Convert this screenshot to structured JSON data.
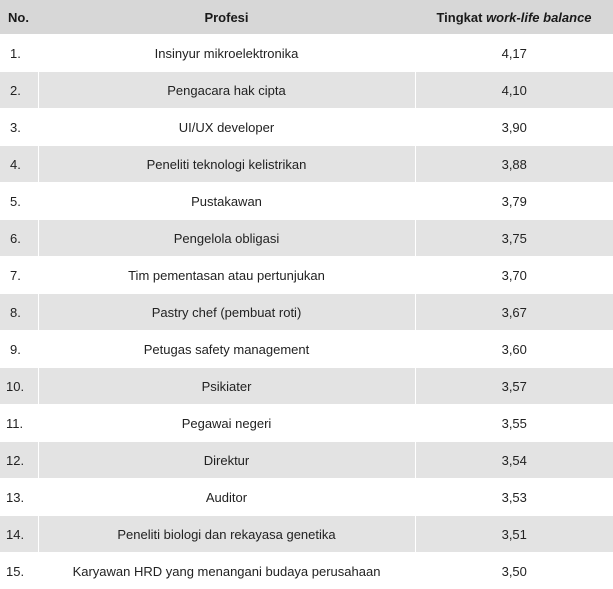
{
  "table": {
    "headers": {
      "no": "No.",
      "profesi": "Profesi",
      "rate_prefix": "Tingkat ",
      "rate_emphasis": "work-life balance"
    },
    "rows": [
      {
        "no": "1.",
        "profesi": "Insinyur mikroelektronika",
        "rate": "4,17"
      },
      {
        "no": "2.",
        "profesi": "Pengacara hak cipta",
        "rate": "4,10"
      },
      {
        "no": "3.",
        "profesi": "UI/UX developer",
        "rate": "3,90"
      },
      {
        "no": "4.",
        "profesi": "Peneliti teknologi kelistrikan",
        "rate": "3,88"
      },
      {
        "no": "5.",
        "profesi": "Pustakawan",
        "rate": "3,79"
      },
      {
        "no": "6.",
        "profesi": "Pengelola obligasi",
        "rate": "3,75"
      },
      {
        "no": "7.",
        "profesi": "Tim pementasan atau pertunjukan",
        "rate": "3,70"
      },
      {
        "no": "8.",
        "profesi": "Pastry chef (pembuat roti)",
        "rate": "3,67"
      },
      {
        "no": "9.",
        "profesi": "Petugas safety management",
        "rate": "3,60"
      },
      {
        "no": "10.",
        "profesi": "Psikiater",
        "rate": "3,57"
      },
      {
        "no": "11.",
        "profesi": "Pegawai negeri",
        "rate": "3,55"
      },
      {
        "no": "12.",
        "profesi": "Direktur",
        "rate": "3,54"
      },
      {
        "no": "13.",
        "profesi": "Auditor",
        "rate": "3,53"
      },
      {
        "no": "14.",
        "profesi": "Peneliti biologi dan rekayasa genetika",
        "rate": "3,51"
      },
      {
        "no": "15.",
        "profesi": "Karyawan HRD yang menangani budaya perusahaan",
        "rate": "3,50"
      }
    ]
  }
}
